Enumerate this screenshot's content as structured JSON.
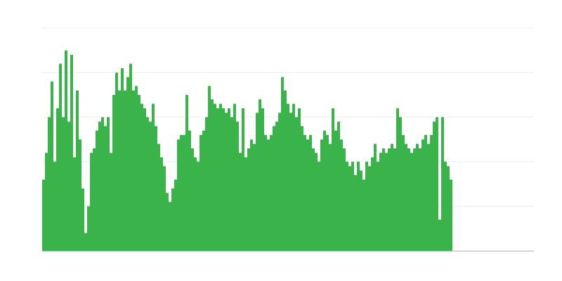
{
  "chart_data": {
    "type": "bar",
    "color": "#3ab34b",
    "ylim": [
      0,
      5
    ],
    "yticks": [
      0,
      1,
      2,
      3,
      4,
      5
    ],
    "grid": true,
    "values": [
      1.6,
      2.2,
      3.0,
      3.8,
      2.0,
      3.2,
      4.2,
      3.0,
      4.5,
      2.9,
      4.4,
      2.1,
      3.6,
      2.5,
      1.4,
      0.4,
      1.0,
      2.2,
      2.3,
      2.7,
      2.9,
      3.0,
      2.8,
      3.0,
      2.2,
      3.5,
      4.0,
      3.6,
      4.1,
      3.6,
      3.9,
      4.2,
      3.6,
      3.7,
      3.5,
      3.3,
      3.2,
      3.0,
      2.9,
      3.3,
      2.8,
      2.4,
      2.1,
      1.9,
      1.3,
      1.1,
      1.4,
      1.6,
      2.5,
      2.6,
      2.6,
      3.5,
      2.7,
      2.3,
      2.1,
      2.0,
      2.6,
      2.7,
      3.0,
      3.7,
      3.4,
      3.3,
      3.2,
      3.3,
      3.2,
      3.1,
      3.2,
      3.0,
      3.3,
      2.9,
      2.2,
      3.2,
      2.1,
      2.3,
      2.5,
      2.4,
      3.1,
      3.4,
      3.2,
      2.6,
      2.5,
      2.6,
      2.8,
      2.9,
      3.1,
      3.9,
      3.6,
      3.3,
      3.1,
      3.3,
      3.0,
      3.2,
      2.8,
      2.6,
      2.5,
      2.6,
      2.3,
      2.2,
      2.0,
      2.5,
      2.7,
      2.6,
      2.4,
      3.2,
      2.7,
      2.9,
      2.5,
      2.3,
      2.0,
      1.9,
      2.0,
      1.7,
      2.0,
      1.8,
      1.6,
      2.0,
      1.9,
      2.1,
      2.4,
      2.0,
      2.2,
      2.3,
      2.2,
      2.3,
      2.4,
      2.3,
      3.2,
      3.0,
      2.6,
      2.4,
      2.3,
      2.2,
      2.3,
      2.4,
      2.3,
      2.5,
      2.6,
      2.4,
      2.6,
      2.9,
      3.0,
      0.7,
      3.0,
      2.0,
      1.9,
      1.6
    ]
  }
}
